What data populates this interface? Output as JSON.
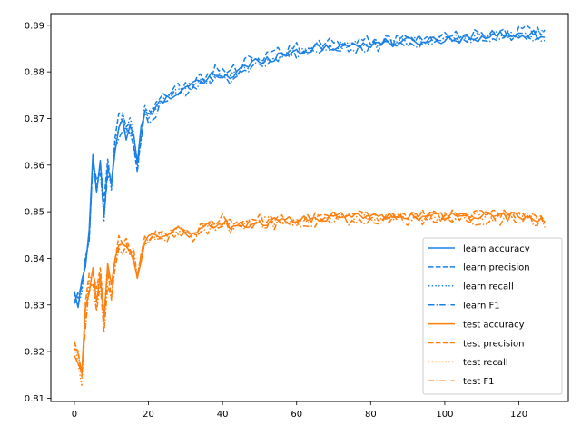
{
  "chart_data": {
    "type": "line",
    "title": "",
    "xlabel": "",
    "ylabel": "",
    "xlim": [
      -6.35,
      133.35
    ],
    "ylim": [
      0.8093,
      0.8925
    ],
    "xticks": [
      0,
      20,
      40,
      60,
      80,
      100,
      120
    ],
    "yticks": [
      0.81,
      0.82,
      0.83,
      0.84,
      0.85,
      0.86,
      0.87,
      0.88,
      0.89
    ],
    "grid": false,
    "legend_position": "lower right",
    "colors": {
      "learn": "#1a80e6",
      "test": "#ff7f0e"
    },
    "learn_anchor_x": [
      0,
      1,
      2,
      3,
      4,
      5,
      6,
      7,
      8,
      9,
      10,
      11,
      12,
      13,
      14,
      15,
      16,
      17,
      18,
      19,
      20,
      22,
      25,
      28,
      30,
      32,
      35,
      38,
      40,
      42,
      45,
      50,
      55,
      60,
      65,
      70,
      80,
      90,
      100,
      110,
      120,
      127
    ],
    "learn_anchor_y": [
      0.8315,
      0.8305,
      0.834,
      0.8385,
      0.845,
      0.8615,
      0.856,
      0.861,
      0.849,
      0.8605,
      0.856,
      0.8635,
      0.868,
      0.869,
      0.8665,
      0.8685,
      0.865,
      0.8605,
      0.867,
      0.8715,
      0.8705,
      0.872,
      0.875,
      0.8755,
      0.8765,
      0.877,
      0.878,
      0.8795,
      0.879,
      0.879,
      0.8805,
      0.8825,
      0.8835,
      0.8845,
      0.885,
      0.8855,
      0.886,
      0.8865,
      0.887,
      0.8875,
      0.888,
      0.888
    ],
    "test_anchor_x": [
      0,
      1,
      2,
      3,
      4,
      5,
      6,
      7,
      8,
      9,
      10,
      11,
      12,
      13,
      14,
      15,
      16,
      17,
      18,
      19,
      20,
      22,
      25,
      28,
      30,
      32,
      35,
      38,
      40,
      42,
      45,
      50,
      55,
      60,
      65,
      70,
      80,
      90,
      100,
      110,
      120,
      127
    ],
    "test_anchor_y": [
      0.8205,
      0.8175,
      0.8135,
      0.8275,
      0.834,
      0.8365,
      0.8305,
      0.8365,
      0.8265,
      0.8365,
      0.832,
      0.8395,
      0.8425,
      0.8415,
      0.8415,
      0.8425,
      0.8405,
      0.8345,
      0.8395,
      0.8445,
      0.8435,
      0.8445,
      0.8445,
      0.8455,
      0.8455,
      0.8445,
      0.8465,
      0.8465,
      0.8475,
      0.8465,
      0.8465,
      0.8475,
      0.8475,
      0.8475,
      0.848,
      0.8485,
      0.8485,
      0.8485,
      0.8485,
      0.8485,
      0.8485,
      0.848
    ],
    "series": [
      {
        "name": "learn accuracy",
        "group": "learn",
        "dash": "solid",
        "offset": 0.0,
        "noise": 0.001
      },
      {
        "name": "learn precision",
        "group": "learn",
        "dash": "dashed",
        "offset": 0.0007,
        "noise": 0.0014
      },
      {
        "name": "learn recall",
        "group": "learn",
        "dash": "dotted",
        "offset": 0.0,
        "noise": 0.001
      },
      {
        "name": "learn F1",
        "group": "learn",
        "dash": "dashdot",
        "offset": -0.0006,
        "noise": 0.0012
      },
      {
        "name": "test accuracy",
        "group": "test",
        "dash": "solid",
        "offset": 0.0005,
        "noise": 0.001
      },
      {
        "name": "test precision",
        "group": "test",
        "dash": "dashed",
        "offset": 0.0008,
        "noise": 0.0012
      },
      {
        "name": "test recall",
        "group": "test",
        "dash": "dotted",
        "offset": 0.0005,
        "noise": 0.001
      },
      {
        "name": "test F1",
        "group": "test",
        "dash": "dashdot",
        "offset": -0.0002,
        "noise": 0.0012
      }
    ]
  }
}
